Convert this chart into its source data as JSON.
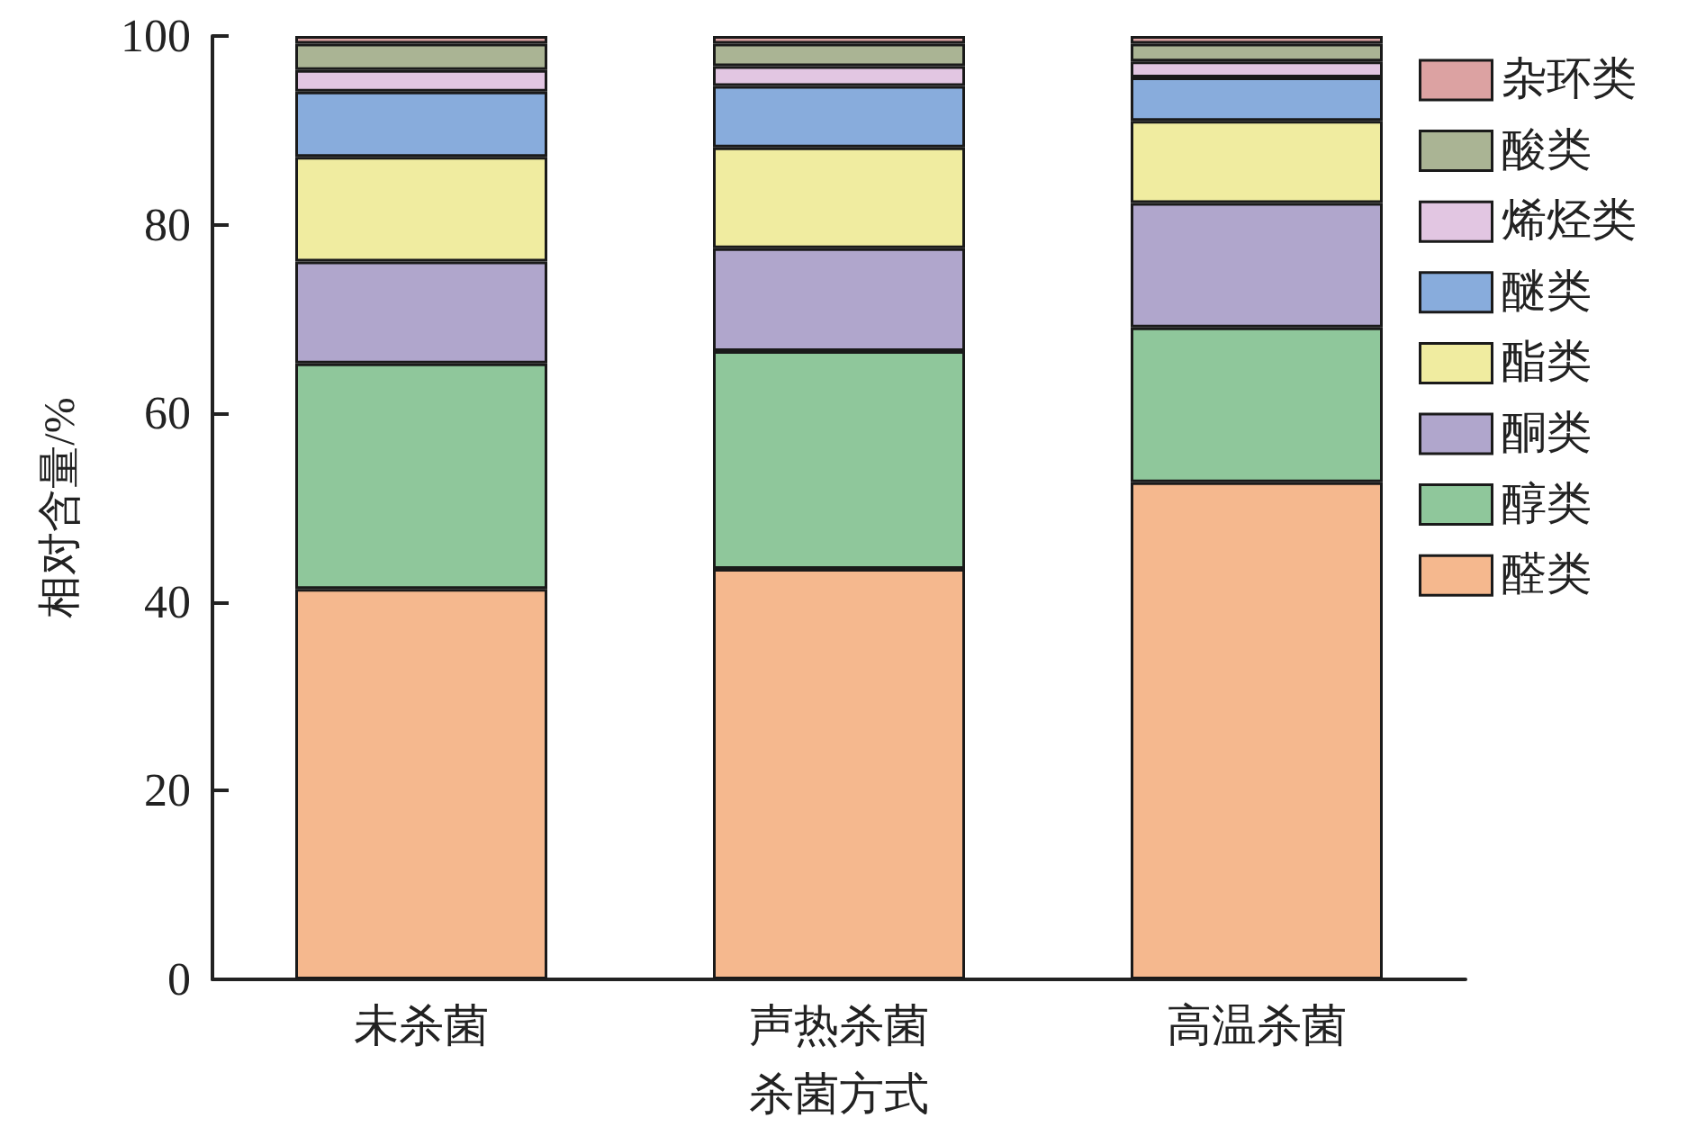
{
  "chart_data": {
    "type": "bar",
    "stacked": true,
    "xlabel": "杀菌方式",
    "ylabel": "相对含量/%",
    "categories": [
      "未杀菌",
      "声热杀菌",
      "高温杀菌"
    ],
    "series": [
      {
        "name": "醛类",
        "color": "#f5b88e",
        "values": [
          41.4,
          43.5,
          52.7
        ]
      },
      {
        "name": "醇类",
        "color": "#8fc79b",
        "values": [
          23.9,
          23.1,
          16.4
        ]
      },
      {
        "name": "酮类",
        "color": "#b0a6cc",
        "values": [
          10.8,
          10.9,
          13.2
        ]
      },
      {
        "name": "酯类",
        "color": "#f0eca0",
        "values": [
          11.1,
          10.7,
          8.7
        ]
      },
      {
        "name": "醚类",
        "color": "#88acdc",
        "values": [
          6.9,
          6.5,
          4.6
        ]
      },
      {
        "name": "烯烃类",
        "color": "#e2c6e2",
        "values": [
          2.3,
          2.1,
          1.7
        ]
      },
      {
        "name": "酸类",
        "color": "#aab494",
        "values": [
          2.8,
          2.4,
          1.9
        ]
      },
      {
        "name": "杂环类",
        "color": "#dca2a2",
        "values": [
          0.8,
          0.8,
          0.8
        ]
      }
    ],
    "ylim": [
      0,
      100
    ],
    "yticks": [
      0,
      20,
      40,
      60,
      80,
      100
    ],
    "grid": false,
    "legend": "right"
  }
}
